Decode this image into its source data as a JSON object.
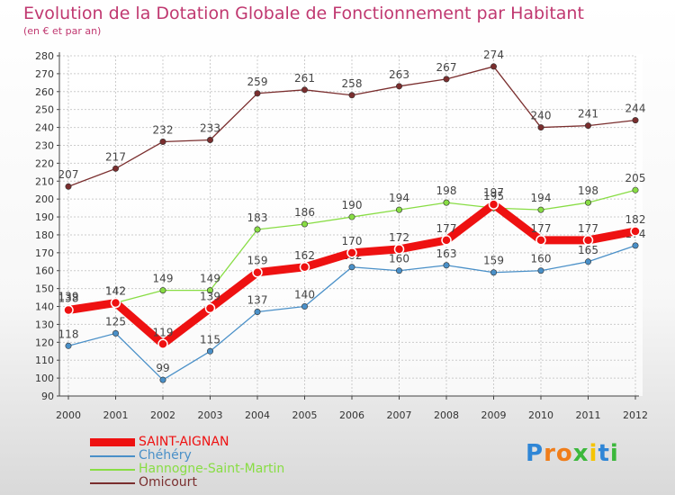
{
  "header": {
    "title": "Evolution de la Dotation Globale de Fonctionnement par Habitant",
    "subtitle": "(en € et par an)"
  },
  "colors": {
    "title": "#c03870",
    "grid": "#cccccc",
    "axis": "#444444"
  },
  "chart_data": {
    "type": "line",
    "title": "Evolution de la Dotation Globale de Fonctionnement par Habitant",
    "subtitle": "(en € et par an)",
    "xlabel": "",
    "ylabel": "",
    "x": [
      "2000",
      "2001",
      "2002",
      "2003",
      "2004",
      "2005",
      "2006",
      "2007",
      "2008",
      "2009",
      "2010",
      "2011",
      "2012"
    ],
    "ylim": [
      90,
      280
    ],
    "yticks": [
      90,
      100,
      110,
      120,
      130,
      140,
      150,
      160,
      170,
      180,
      190,
      200,
      210,
      220,
      230,
      240,
      250,
      260,
      270,
      280
    ],
    "grid": true,
    "legend_position": "bottom-left",
    "series": [
      {
        "name": "SAINT-AIGNAN",
        "color": "#ee1111",
        "values": [
          138,
          142,
          119,
          139,
          159,
          162,
          170,
          172,
          177,
          197,
          177,
          177,
          182
        ]
      },
      {
        "name": "Chéhéry",
        "color": "#4a90c8",
        "values": [
          118,
          125,
          99,
          115,
          137,
          140,
          162,
          160,
          163,
          159,
          160,
          165,
          174
        ]
      },
      {
        "name": "Hannogne-Saint-Martin",
        "color": "#88dd44",
        "values": [
          139,
          142,
          149,
          149,
          183,
          186,
          190,
          194,
          198,
          195,
          194,
          198,
          205
        ]
      },
      {
        "name": "Omicourt",
        "color": "#7a2e2e",
        "values": [
          207,
          217,
          232,
          233,
          259,
          261,
          258,
          263,
          267,
          274,
          240,
          241,
          244
        ]
      }
    ]
  },
  "logo": {
    "letters": [
      "P",
      "r",
      "o",
      "x",
      "i",
      "t",
      "i"
    ],
    "colors": [
      "#2f86d6",
      "#f07d1a",
      "#f07d1a",
      "#3cb83c",
      "#f5c400",
      "#2f86d6",
      "#3cb83c"
    ]
  }
}
